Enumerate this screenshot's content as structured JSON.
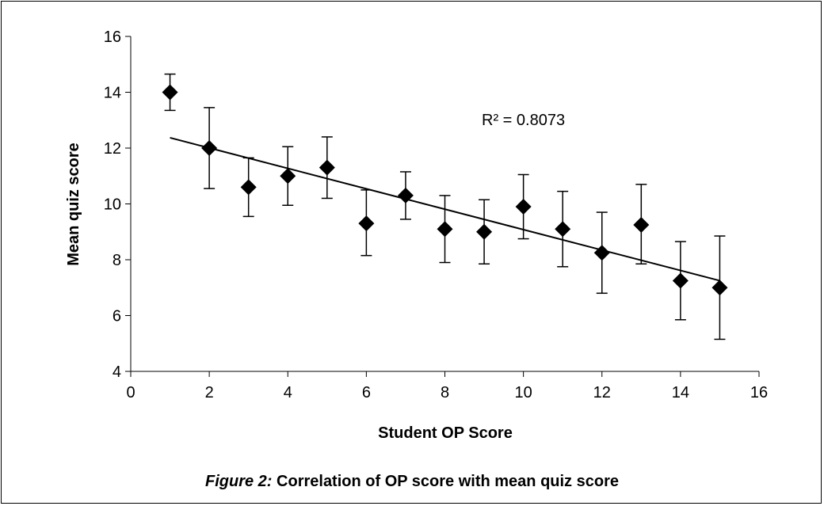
{
  "chart_data": {
    "type": "scatter",
    "xlabel": "Student OP Score",
    "ylabel": "Mean quiz score",
    "xlim": [
      0,
      16
    ],
    "ylim": [
      4,
      16
    ],
    "xticks": [
      0,
      2,
      4,
      6,
      8,
      10,
      12,
      14,
      16
    ],
    "yticks": [
      4,
      6,
      8,
      10,
      12,
      14,
      16
    ],
    "grid": false,
    "marker": "diamond",
    "marker_color": "#000000",
    "points": [
      {
        "x": 1,
        "y": 14.0,
        "err_low": 13.35,
        "err_high": 14.65
      },
      {
        "x": 2,
        "y": 12.0,
        "err_low": 10.55,
        "err_high": 13.45
      },
      {
        "x": 3,
        "y": 10.6,
        "err_low": 9.55,
        "err_high": 11.65
      },
      {
        "x": 4,
        "y": 11.0,
        "err_low": 9.95,
        "err_high": 12.05
      },
      {
        "x": 5,
        "y": 11.3,
        "err_low": 10.2,
        "err_high": 12.4
      },
      {
        "x": 6,
        "y": 9.3,
        "err_low": 8.15,
        "err_high": 10.5
      },
      {
        "x": 7,
        "y": 10.3,
        "err_low": 9.45,
        "err_high": 11.15
      },
      {
        "x": 8,
        "y": 9.1,
        "err_low": 7.9,
        "err_high": 10.3
      },
      {
        "x": 9,
        "y": 9.0,
        "err_low": 7.85,
        "err_high": 10.15
      },
      {
        "x": 10,
        "y": 9.9,
        "err_low": 8.75,
        "err_high": 11.05
      },
      {
        "x": 11,
        "y": 9.1,
        "err_low": 7.75,
        "err_high": 10.45
      },
      {
        "x": 12,
        "y": 8.25,
        "err_low": 6.8,
        "err_high": 9.7
      },
      {
        "x": 13,
        "y": 9.25,
        "err_low": 7.85,
        "err_high": 10.7
      },
      {
        "x": 14,
        "y": 7.25,
        "err_low": 5.85,
        "err_high": 8.65
      },
      {
        "x": 15,
        "y": 7.0,
        "err_low": 5.15,
        "err_high": 8.85
      }
    ],
    "trendline": {
      "type": "linear",
      "x": [
        1,
        15
      ],
      "y": [
        12.37,
        7.25
      ]
    },
    "annotation": "R² = 0.8073"
  },
  "caption": {
    "lead": "Figure 2:",
    "text": "Correlation of OP score with mean quiz score"
  }
}
